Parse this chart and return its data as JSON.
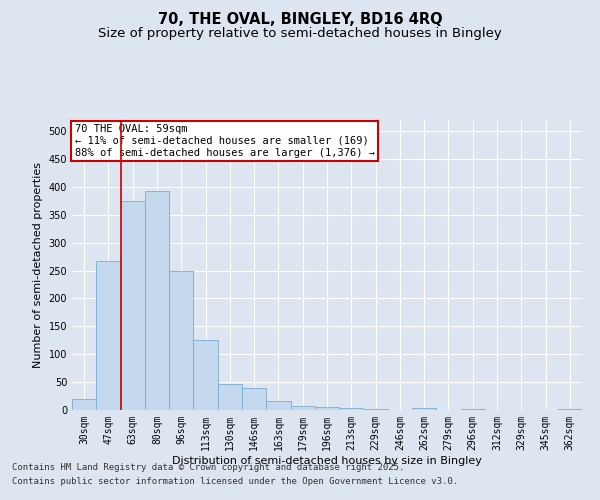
{
  "title_line1": "70, THE OVAL, BINGLEY, BD16 4RQ",
  "title_line2": "Size of property relative to semi-detached houses in Bingley",
  "xlabel": "Distribution of semi-detached houses by size in Bingley",
  "ylabel": "Number of semi-detached properties",
  "categories": [
    "30sqm",
    "47sqm",
    "63sqm",
    "80sqm",
    "96sqm",
    "113sqm",
    "130sqm",
    "146sqm",
    "163sqm",
    "179sqm",
    "196sqm",
    "213sqm",
    "229sqm",
    "246sqm",
    "262sqm",
    "279sqm",
    "296sqm",
    "312sqm",
    "329sqm",
    "345sqm",
    "362sqm"
  ],
  "values": [
    20,
    267,
    375,
    393,
    250,
    125,
    47,
    40,
    17,
    8,
    5,
    3,
    2,
    0,
    3,
    0,
    2,
    0,
    0,
    0,
    2
  ],
  "bar_color": "#c5d9ee",
  "bar_edge_color": "#7aadd4",
  "vline_x": 1.5,
  "vline_color": "#cc0000",
  "annotation_title": "70 THE OVAL: 59sqm",
  "annotation_line2": "← 11% of semi-detached houses are smaller (169)",
  "annotation_line3": "88% of semi-detached houses are larger (1,376) →",
  "annotation_box_edge": "#cc0000",
  "ylim": [
    0,
    520
  ],
  "yticks": [
    0,
    50,
    100,
    150,
    200,
    250,
    300,
    350,
    400,
    450,
    500
  ],
  "footnote1": "Contains HM Land Registry data © Crown copyright and database right 2025.",
  "footnote2": "Contains public sector information licensed under the Open Government Licence v3.0.",
  "bg_color": "#dde6f0",
  "plot_bg_color": "#dde6f0",
  "grid_color": "#ffffff",
  "title_fontsize": 10.5,
  "subtitle_fontsize": 9.5,
  "axis_label_fontsize": 8,
  "tick_fontsize": 7,
  "annot_fontsize": 7.5,
  "footnote_fontsize": 6.5
}
